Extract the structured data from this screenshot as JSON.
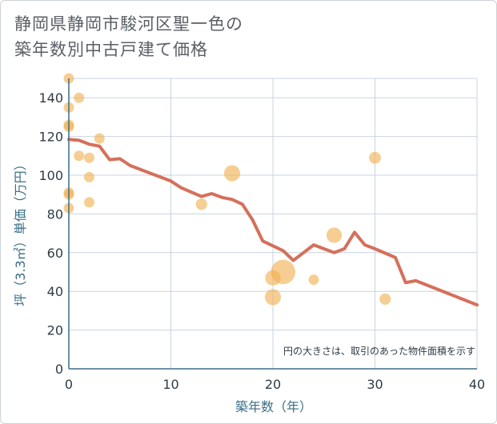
{
  "chart_data": {
    "type": "scatter",
    "title_line1": "静岡県静岡市駿河区聖一色の",
    "title_line2": "築年数別中古戸建て価格",
    "xlabel": "築年数（年）",
    "ylabel": "坪（3.3㎡）単価（万円）",
    "note": "円の大きさは、取引のあった物件面積を示す",
    "xlim": [
      0,
      40
    ],
    "ylim": [
      0,
      150
    ],
    "xticks": [
      "0",
      "10",
      "20",
      "30",
      "40"
    ],
    "yticks": [
      "0",
      "20",
      "40",
      "60",
      "80",
      "100",
      "120",
      "140"
    ],
    "colors": {
      "bubble": "#f0b050",
      "line": "#d4705a",
      "grid": "#c8d4e0",
      "axis": "#3a6f86"
    },
    "scatter": [
      {
        "x": 0,
        "y": 150,
        "size": 1
      },
      {
        "x": 0,
        "y": 135,
        "size": 1
      },
      {
        "x": 0,
        "y": 126,
        "size": 1
      },
      {
        "x": 0,
        "y": 125,
        "size": 1
      },
      {
        "x": 0,
        "y": 91,
        "size": 1
      },
      {
        "x": 0,
        "y": 90,
        "size": 1
      },
      {
        "x": 0,
        "y": 83,
        "size": 1
      },
      {
        "x": 1,
        "y": 140,
        "size": 1
      },
      {
        "x": 1,
        "y": 110,
        "size": 1
      },
      {
        "x": 2,
        "y": 109,
        "size": 1
      },
      {
        "x": 2,
        "y": 99,
        "size": 1
      },
      {
        "x": 2,
        "y": 86,
        "size": 1
      },
      {
        "x": 3,
        "y": 119,
        "size": 1
      },
      {
        "x": 13,
        "y": 85,
        "size": 1.2
      },
      {
        "x": 16,
        "y": 101,
        "size": 2.4
      },
      {
        "x": 20,
        "y": 37,
        "size": 2.4
      },
      {
        "x": 20,
        "y": 47,
        "size": 2.2
      },
      {
        "x": 21,
        "y": 50,
        "size": 5.5
      },
      {
        "x": 24,
        "y": 46,
        "size": 1
      },
      {
        "x": 26,
        "y": 69,
        "size": 2.2
      },
      {
        "x": 30,
        "y": 109,
        "size": 1.3
      },
      {
        "x": 31,
        "y": 36,
        "size": 1.2
      }
    ],
    "line": [
      {
        "x": 0,
        "y": 118.5
      },
      {
        "x": 1,
        "y": 118
      },
      {
        "x": 2,
        "y": 116
      },
      {
        "x": 3,
        "y": 115
      },
      {
        "x": 4,
        "y": 108
      },
      {
        "x": 5,
        "y": 108.5
      },
      {
        "x": 6,
        "y": 105
      },
      {
        "x": 8,
        "y": 101
      },
      {
        "x": 10,
        "y": 97
      },
      {
        "x": 11,
        "y": 93.5
      },
      {
        "x": 13,
        "y": 89
      },
      {
        "x": 14,
        "y": 90.5
      },
      {
        "x": 15,
        "y": 88.5
      },
      {
        "x": 16,
        "y": 87.5
      },
      {
        "x": 17,
        "y": 85
      },
      {
        "x": 18,
        "y": 77
      },
      {
        "x": 19,
        "y": 66
      },
      {
        "x": 20,
        "y": 63.5
      },
      {
        "x": 21,
        "y": 61
      },
      {
        "x": 22,
        "y": 56
      },
      {
        "x": 23,
        "y": 60
      },
      {
        "x": 24,
        "y": 64
      },
      {
        "x": 25,
        "y": 62
      },
      {
        "x": 26,
        "y": 60
      },
      {
        "x": 27,
        "y": 62
      },
      {
        "x": 28,
        "y": 70.5
      },
      {
        "x": 29,
        "y": 64
      },
      {
        "x": 30,
        "y": 62
      },
      {
        "x": 32,
        "y": 57.5
      },
      {
        "x": 33,
        "y": 44.5
      },
      {
        "x": 34,
        "y": 45.5
      },
      {
        "x": 40,
        "y": 33
      }
    ]
  }
}
